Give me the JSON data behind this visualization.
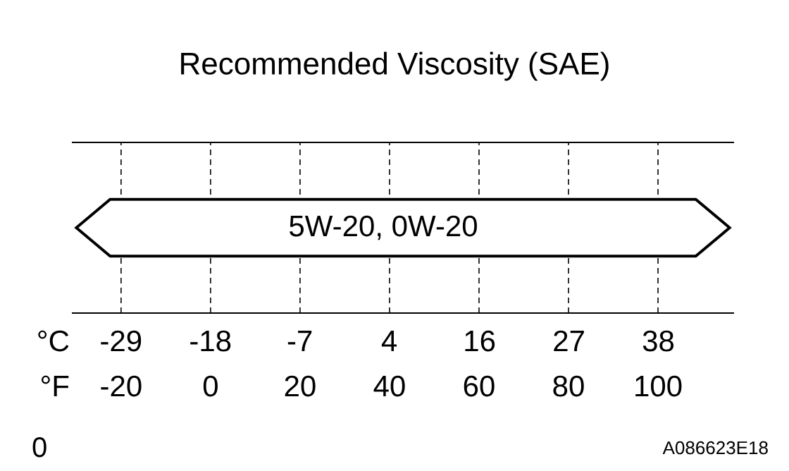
{
  "chart_data": {
    "type": "bar",
    "orientation": "horizontal",
    "title": "Recommended Viscosity (SAE)",
    "categories": [
      "5W-20, 0W-20"
    ],
    "base": [
      -30
    ],
    "values": [
      146
    ],
    "color": "#ffffff",
    "xlabel": "°F",
    "x2label": "°C",
    "xlim": [
      -31,
      117
    ],
    "xticks": [
      -20,
      0,
      20,
      40,
      60,
      80,
      100
    ],
    "x2lim": [
      -35,
      47.2
    ],
    "x2ticks": [
      {
        "value": -28.9,
        "label": "-29"
      },
      {
        "value": -17.8,
        "label": "-18"
      },
      {
        "value": -6.7,
        "label": "-7"
      },
      {
        "value": 4.4,
        "label": "4"
      },
      {
        "value": 15.6,
        "label": "16"
      },
      {
        "value": 26.7,
        "label": "27"
      },
      {
        "value": 37.8,
        "label": "38"
      }
    ],
    "grid": "x",
    "tick_labels": "x",
    "annotations": [
      "0",
      "A086623E18"
    ]
  }
}
